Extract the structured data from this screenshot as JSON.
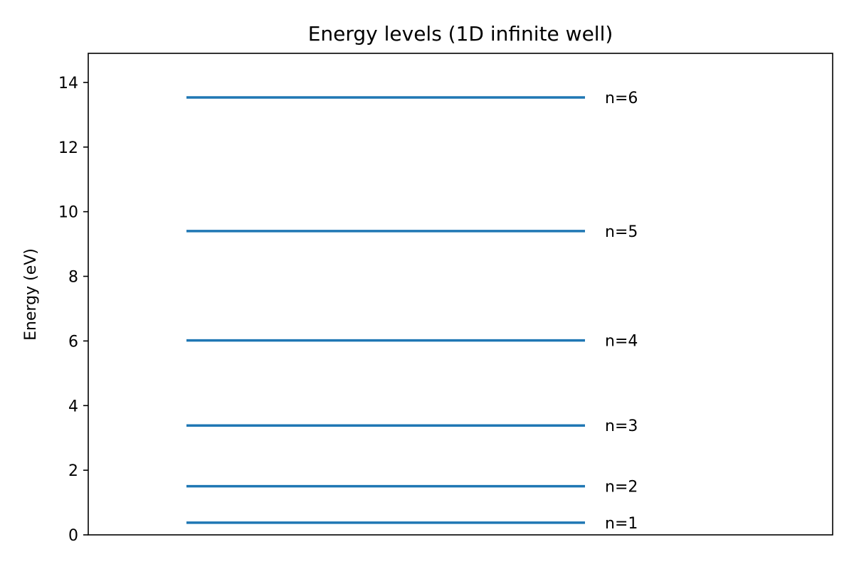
{
  "chart_data": {
    "type": "line",
    "title": "Energy levels (1D infinite well)",
    "xlabel": "",
    "ylabel": "Energy (eV)",
    "ylim": [
      0,
      14.9
    ],
    "y_ticks": [
      0,
      2,
      4,
      6,
      8,
      10,
      12,
      14
    ],
    "x_ticks": [],
    "grid": false,
    "legend": "none",
    "line_color": "#1f77b4",
    "levels": [
      {
        "n": 1,
        "label": "n=1",
        "energy": 0.376
      },
      {
        "n": 2,
        "label": "n=2",
        "energy": 1.504
      },
      {
        "n": 3,
        "label": "n=3",
        "energy": 3.384
      },
      {
        "n": 4,
        "label": "n=4",
        "energy": 6.016
      },
      {
        "n": 5,
        "label": "n=5",
        "energy": 9.4
      },
      {
        "n": 6,
        "label": "n=6",
        "energy": 13.536
      }
    ]
  }
}
